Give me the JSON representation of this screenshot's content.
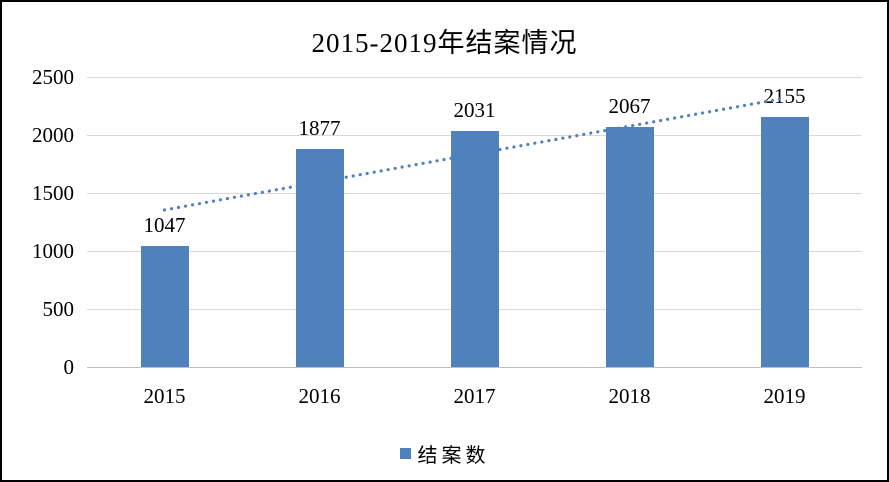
{
  "chart_data": {
    "type": "bar",
    "title": "2015-2019年结案情况",
    "categories": [
      "2015",
      "2016",
      "2017",
      "2018",
      "2019"
    ],
    "series": [
      {
        "name": "结案数",
        "values": [
          1047,
          1877,
          2031,
          2067,
          2155
        ]
      }
    ],
    "data_labels": [
      "1047",
      "1877",
      "2031",
      "2067",
      "2155"
    ],
    "xlabel": "",
    "ylabel": "",
    "ylim": [
      0,
      2500
    ],
    "yticks": [
      0,
      500,
      1000,
      1500,
      2000,
      2500
    ],
    "grid": true,
    "legend_position": "bottom",
    "bar_color": "#4F81BD",
    "gridline_color": "#D9D9D9",
    "axis_color": "#BFBFBF",
    "trendline": {
      "type": "linear",
      "style": "dotted",
      "color": "#4F81BD",
      "start_value": 1354,
      "end_value": 2317
    }
  },
  "legend": {
    "label": "结案数",
    "swatch_color": "#4F81BD"
  }
}
